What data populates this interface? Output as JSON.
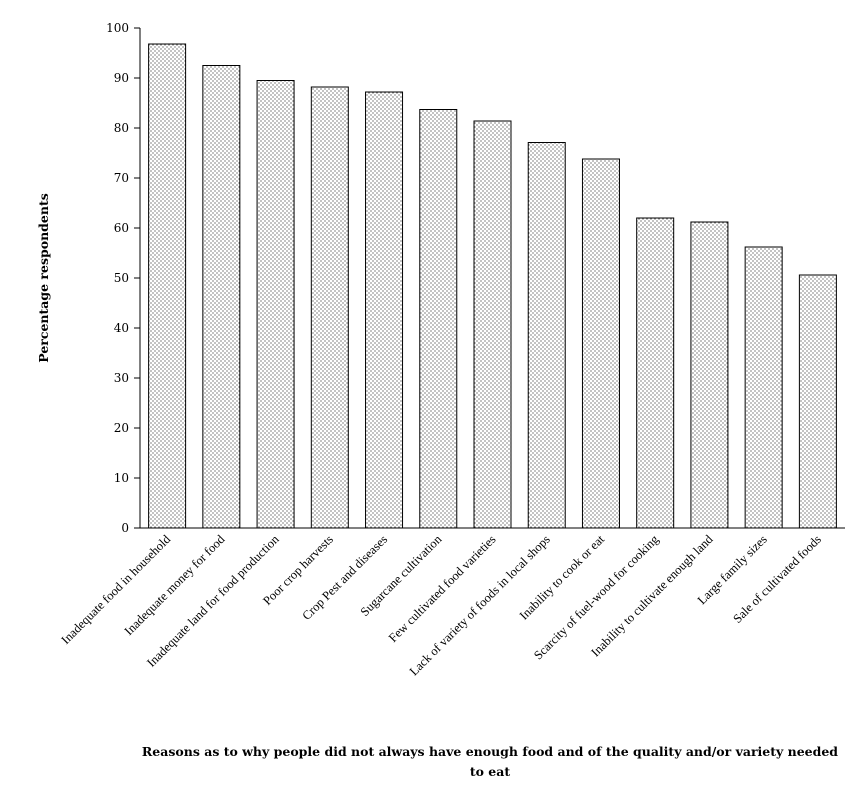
{
  "chart_data": {
    "type": "bar",
    "title": "",
    "ylabel": "Percentage respondents",
    "xlabel": "Reasons as to why people did not always have enough food and of the quality and/or variety needed to eat",
    "ylim": [
      0,
      100
    ],
    "yticks": [
      0,
      10,
      20,
      30,
      40,
      50,
      60,
      70,
      80,
      90,
      100
    ],
    "grid": false,
    "categories": [
      "Inadequate food in household",
      "Inadequate money for food",
      "Inadequate land for food  production",
      "Poor crop harvests",
      "Crop Pest and diseases",
      "Sugarcane cultivation",
      "Few cultivated food varieties",
      "Lack of variety of foods in local shops",
      "Inability to cook or eat",
      "Scarcity of fuel-wood for cooking",
      "Inability to cultivate enough land",
      "Large family sizes",
      "Sale of cultivated foods"
    ],
    "values": [
      96.8,
      92.5,
      89.5,
      88.2,
      87.2,
      83.7,
      81.4,
      77.1,
      73.8,
      62.0,
      61.2,
      56.2,
      50.6
    ],
    "bar_fill": "dotted"
  }
}
